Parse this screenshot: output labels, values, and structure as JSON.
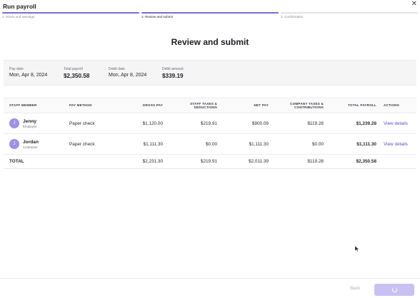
{
  "app": {
    "title": "Run payroll",
    "close_icon": "close-icon"
  },
  "steps": [
    {
      "label": "1. Hours and earnings",
      "state": "done"
    },
    {
      "label": "2. Review and submit",
      "state": "active"
    },
    {
      "label": "3. Confirmation",
      "state": "todo"
    }
  ],
  "page_title": "Review and submit",
  "summary": {
    "pay_date": {
      "label": "Pay date",
      "value": "Mon, Apr 8, 2024"
    },
    "total_payroll": {
      "label": "Total payroll",
      "value": "$2,350.58"
    },
    "debit_date": {
      "label": "Debit date",
      "value": "Mon, Apr 8, 2024"
    },
    "debit_amount": {
      "label": "Debit amount",
      "value": "$339.19"
    }
  },
  "table": {
    "headers": {
      "staff_member": "Staff member",
      "pay_method": "Pay method",
      "gross_pay": "Gross pay",
      "staff_taxes": "Staff taxes & deductions",
      "net_pay": "Net pay",
      "company_taxes": "Company taxes & contributions",
      "total_payroll": "Total payroll",
      "actions": "Actions"
    },
    "rows": [
      {
        "initial": "J",
        "name": "Jenny",
        "role": "Employee",
        "pay_method": "Paper check",
        "gross_pay": "$1,120.00",
        "staff_taxes": "$219.91",
        "net_pay": "$900.09",
        "company_taxes": "$119.28",
        "total_payroll": "$1,239.28",
        "action": "View details"
      },
      {
        "initial": "J",
        "name": "Jordan",
        "role": "Contractor",
        "pay_method": "Paper check",
        "gross_pay": "$1,111.30",
        "staff_taxes": "$0.00",
        "net_pay": "$1,111.30",
        "company_taxes": "$0.00",
        "total_payroll": "$1,111.30",
        "action": "View details"
      }
    ],
    "total": {
      "label": "Total",
      "gross_pay": "$2,231.30",
      "staff_taxes": "$219.91",
      "net_pay": "$2,011.39",
      "company_taxes": "$119.28",
      "total_payroll": "$2,350.58"
    }
  },
  "footer": {
    "back_label": "Back",
    "submit_icon": "spinner-icon"
  },
  "colors": {
    "accent": "#7b6bd6",
    "link": "#5b4fcf",
    "avatar": "#9d90e6",
    "submit_disabled": "#c9c1f2"
  }
}
